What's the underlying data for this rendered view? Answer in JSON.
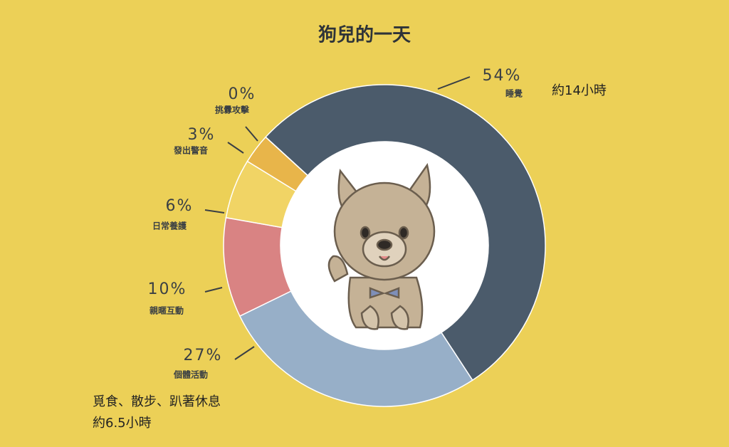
{
  "chart_data": {
    "type": "donut",
    "title": "狗兒的一天",
    "categories": [
      "睡覺",
      "個體活動",
      "親暱互動",
      "日常養護",
      "發出警音",
      "挑釁攻擊"
    ],
    "values": [
      54,
      27,
      10,
      6,
      3,
      0
    ],
    "value_labels": [
      "54%",
      "27%",
      "10%",
      "6%",
      "3%",
      "0%"
    ],
    "colors": [
      "#4b5b6b",
      "#97afc8",
      "#d98383",
      "#f1d465",
      "#e8b54a",
      "#c0504d"
    ],
    "annotations": [
      "約14小時",
      "覓食、散步、趴著休息",
      "約6.5小時"
    ]
  }
}
